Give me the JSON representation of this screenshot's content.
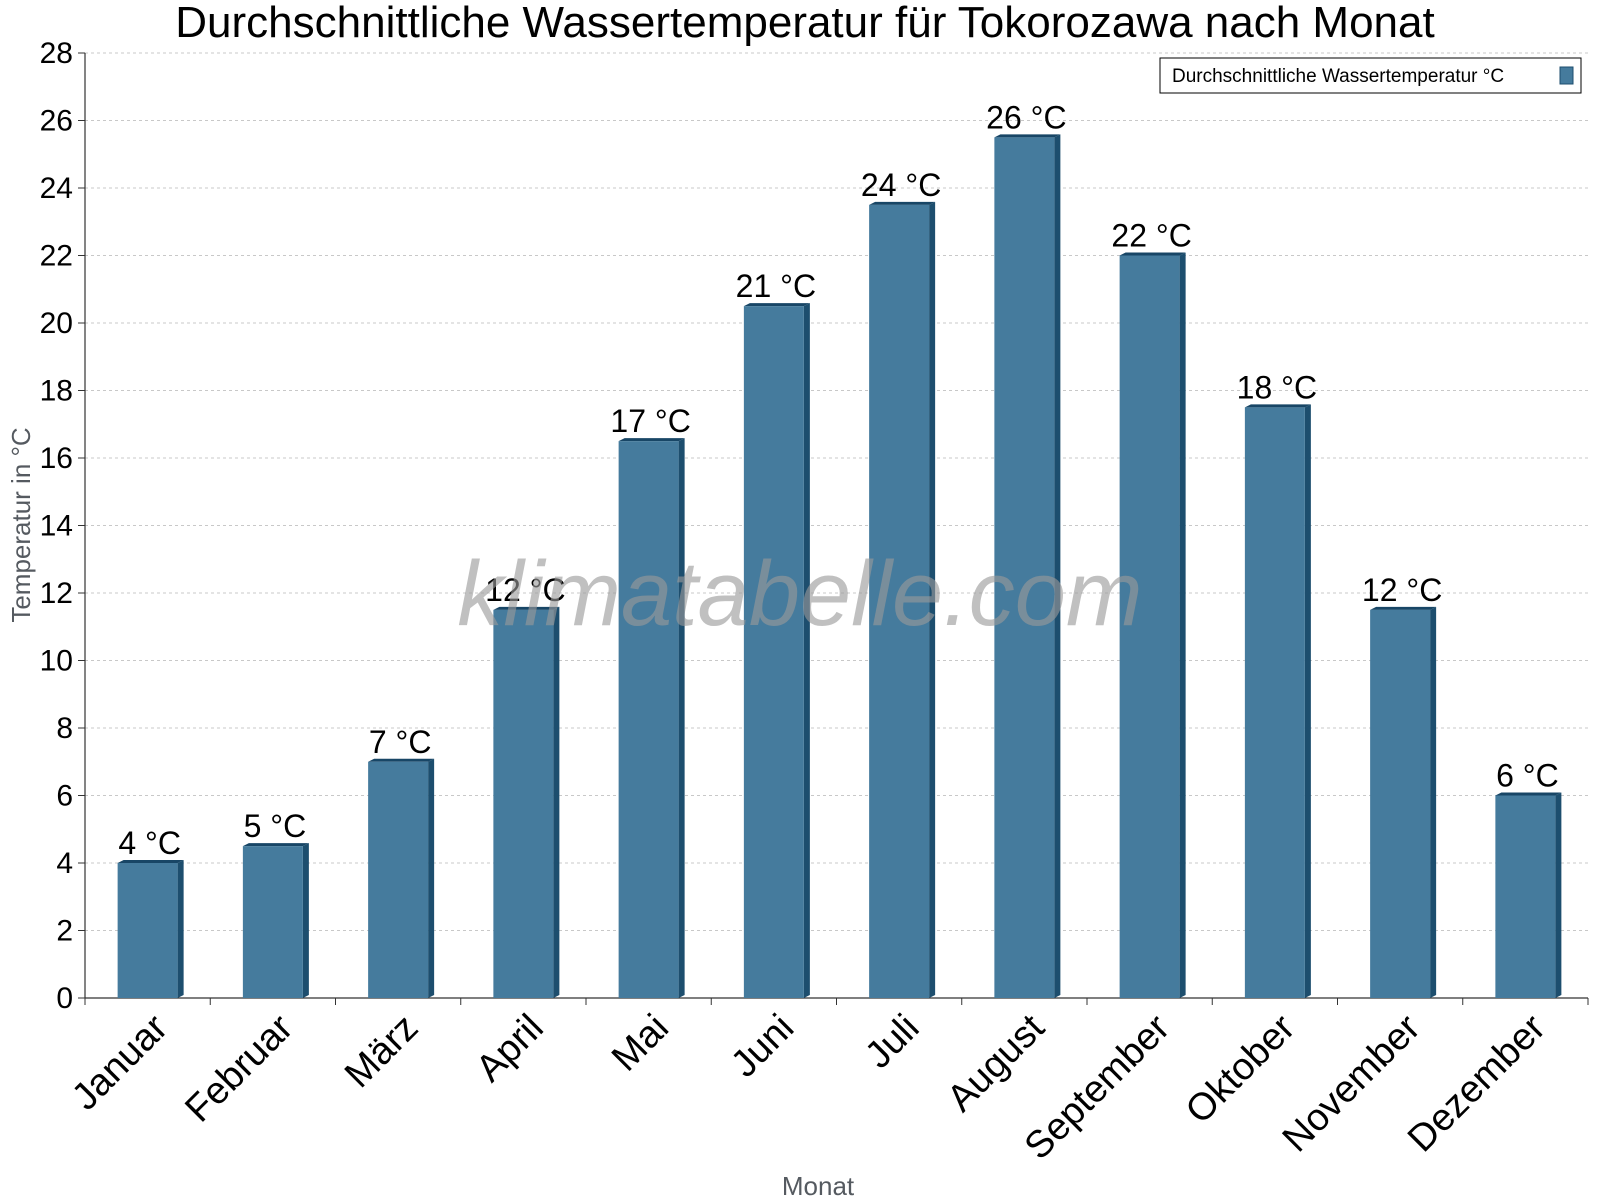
{
  "colors": {
    "bar_face": "#457b9d",
    "bar_side": "#1d4e6e",
    "bar_top": "#184666",
    "grid": "#c8c8c8",
    "axis": "#333333"
  },
  "watermark": "klimatabelle.com",
  "chart_data": {
    "type": "bar",
    "title": "Durchschnittliche Wassertemperatur für Tokorozawa nach Monat",
    "xlabel": "Monat",
    "ylabel": "Temperatur in °C",
    "ylim": [
      0,
      28
    ],
    "yticks": [
      "0",
      "2",
      "4",
      "6",
      "8",
      "10",
      "12",
      "14",
      "16",
      "18",
      "20",
      "22",
      "24",
      "26",
      "28"
    ],
    "grid": true,
    "legend_position": "top-right",
    "categories": [
      "Januar",
      "Februar",
      "März",
      "April",
      "Mai",
      "Juni",
      "Juli",
      "August",
      "September",
      "Oktober",
      "November",
      "Dezember"
    ],
    "series": [
      {
        "name": "Durchschnittliche Wassertemperatur °C",
        "values": [
          4,
          4.5,
          7,
          11.5,
          16.5,
          20.5,
          23.5,
          25.5,
          22,
          17.5,
          11.5,
          6
        ],
        "labels": [
          "4 °C",
          "5 °C",
          "7 °C",
          "12 °C",
          "17 °C",
          "21 °C",
          "24 °C",
          "26 °C",
          "22 °C",
          "18 °C",
          "12 °C",
          "6 °C"
        ]
      }
    ]
  }
}
